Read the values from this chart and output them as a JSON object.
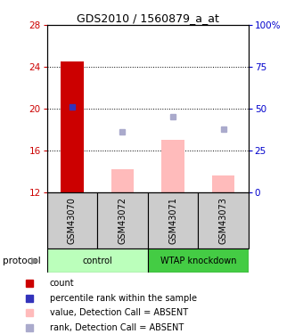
{
  "title": "GDS2010 / 1560879_a_at",
  "samples": [
    "GSM43070",
    "GSM43072",
    "GSM43071",
    "GSM43073"
  ],
  "groups": [
    {
      "name": "control",
      "indices": [
        0,
        1
      ],
      "color": "#bbffbb"
    },
    {
      "name": "WTAP knockdown",
      "indices": [
        2,
        3
      ],
      "color": "#44cc44"
    }
  ],
  "ylim_left": [
    12,
    28
  ],
  "ylim_right": [
    0,
    100
  ],
  "yticks_left": [
    12,
    16,
    20,
    24,
    28
  ],
  "yticks_right": [
    0,
    25,
    50,
    75,
    100
  ],
  "red_bar": {
    "sample_idx": 0,
    "value": 24.5
  },
  "blue_square": {
    "sample_idx": 0,
    "value": 20.2
  },
  "pink_bars": [
    {
      "sample_idx": 1,
      "value": 14.2
    },
    {
      "sample_idx": 2,
      "value": 17.0
    },
    {
      "sample_idx": 3,
      "value": 13.6
    }
  ],
  "lavender_squares": [
    {
      "sample_idx": 1,
      "value": 17.8
    },
    {
      "sample_idx": 2,
      "value": 19.2
    },
    {
      "sample_idx": 3,
      "value": 18.0
    }
  ],
  "bar_bottom": 12,
  "bar_width": 0.45,
  "red_color": "#cc0000",
  "blue_color": "#3333bb",
  "pink_color": "#ffbbbb",
  "lavender_color": "#aaaacc",
  "grid_color": "#000000",
  "left_label_color": "#cc0000",
  "right_label_color": "#0000cc",
  "sample_box_color": "#cccccc",
  "legend_items": [
    {
      "label": "count",
      "color": "#cc0000"
    },
    {
      "label": "percentile rank within the sample",
      "color": "#3333bb"
    },
    {
      "label": "value, Detection Call = ABSENT",
      "color": "#ffbbbb"
    },
    {
      "label": "rank, Detection Call = ABSENT",
      "color": "#aaaacc"
    }
  ]
}
